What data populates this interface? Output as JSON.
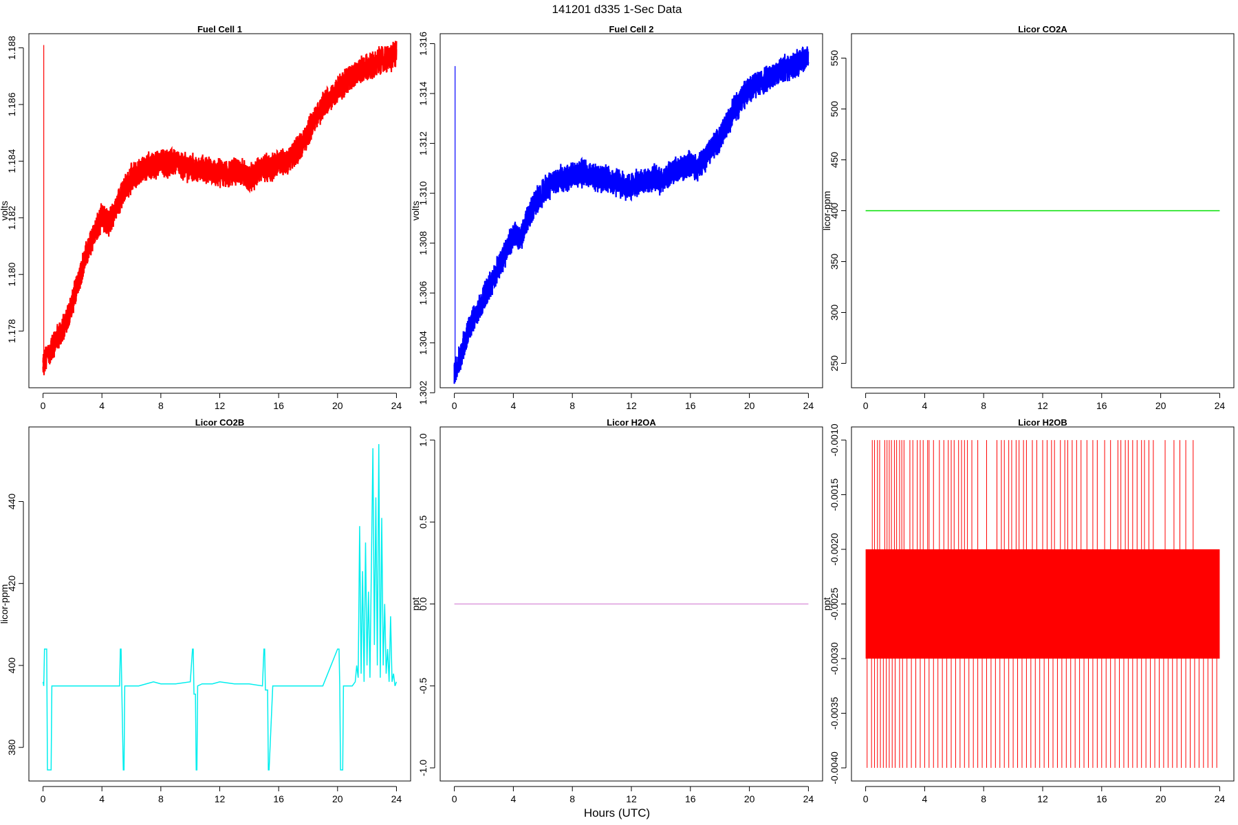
{
  "title": "141201   d335   1-Sec Data",
  "xlabel": "Hours (UTC)",
  "chart_data": [
    {
      "type": "line",
      "title": "Fuel Cell 1",
      "ylabel": "volts",
      "color": "#ff0000",
      "xlim": [
        -0.96,
        24.96
      ],
      "ylim": [
        1.176,
        1.1885
      ],
      "xticks": [
        0,
        4,
        8,
        12,
        16,
        20,
        24
      ],
      "yticks": [
        1.178,
        1.18,
        1.182,
        1.184,
        1.186,
        1.188
      ],
      "ytick_labels": [
        "1.178",
        "1.180",
        "1.182",
        "1.184",
        "1.186",
        "1.188"
      ],
      "band": 0.00045,
      "spike": {
        "x": 0.05,
        "y_low": 1.1765,
        "y_high": 1.1881
      },
      "series": [
        {
          "x": [
            0.0,
            0.2,
            0.5,
            0.8,
            1.0,
            1.5,
            2.0,
            2.5,
            3.0,
            3.5,
            4.0,
            4.5,
            5.0,
            5.5,
            6.0,
            6.5,
            7.0,
            7.5,
            8.0,
            8.5,
            9.0,
            9.5,
            10.0,
            10.5,
            11.0,
            11.5,
            12.0,
            12.5,
            13.0,
            13.5,
            14.0,
            14.5,
            15.0,
            15.5,
            16.0,
            16.5,
            17.0,
            17.5,
            18.0,
            18.5,
            19.0,
            19.5,
            20.0,
            20.5,
            21.0,
            21.5,
            22.0,
            22.5,
            23.0,
            23.5,
            24.0
          ],
          "y": [
            1.1768,
            1.177,
            1.1773,
            1.1776,
            1.1778,
            1.1782,
            1.179,
            1.18,
            1.1808,
            1.1815,
            1.182,
            1.1818,
            1.1825,
            1.183,
            1.1834,
            1.1836,
            1.1838,
            1.1838,
            1.184,
            1.1839,
            1.184,
            1.1838,
            1.1838,
            1.1837,
            1.1837,
            1.1836,
            1.1836,
            1.1835,
            1.1837,
            1.1836,
            1.1834,
            1.1836,
            1.1838,
            1.1837,
            1.184,
            1.1839,
            1.1842,
            1.1845,
            1.185,
            1.1855,
            1.186,
            1.1862,
            1.1865,
            1.1868,
            1.187,
            1.1872,
            1.1873,
            1.1874,
            1.1876,
            1.1876,
            1.1878
          ]
        }
      ]
    },
    {
      "type": "line",
      "title": "Fuel Cell 2",
      "ylabel": "volts",
      "color": "#0000ff",
      "xlim": [
        -0.96,
        24.96
      ],
      "ylim": [
        1.3022,
        1.3164
      ],
      "xticks": [
        0,
        4,
        8,
        12,
        16,
        20,
        24
      ],
      "yticks": [
        1.302,
        1.304,
        1.306,
        1.308,
        1.31,
        1.312,
        1.314,
        1.316
      ],
      "ytick_labels": [
        "1.302",
        "1.304",
        "1.306",
        "1.308",
        "1.310",
        "1.312",
        "1.314",
        "1.316"
      ],
      "band": 0.0005,
      "spike": {
        "x": 0.05,
        "y_low": 1.3026,
        "y_high": 1.3151
      },
      "series": [
        {
          "x": [
            0.0,
            0.2,
            0.5,
            0.8,
            1.0,
            1.5,
            2.0,
            2.5,
            3.0,
            3.5,
            4.0,
            4.5,
            5.0,
            5.5,
            6.0,
            6.5,
            7.0,
            7.5,
            8.0,
            8.5,
            9.0,
            9.5,
            10.0,
            10.5,
            11.0,
            11.5,
            12.0,
            12.5,
            13.0,
            13.5,
            14.0,
            14.5,
            15.0,
            15.5,
            16.0,
            16.5,
            17.0,
            17.5,
            18.0,
            18.5,
            19.0,
            19.5,
            20.0,
            20.5,
            21.0,
            21.5,
            22.0,
            22.5,
            23.0,
            23.5,
            24.0
          ],
          "y": [
            1.3028,
            1.3031,
            1.3036,
            1.3042,
            1.3046,
            1.3052,
            1.3058,
            1.3064,
            1.307,
            1.3077,
            1.3083,
            1.3082,
            1.309,
            1.3096,
            1.3101,
            1.3103,
            1.3105,
            1.3106,
            1.3108,
            1.3108,
            1.3108,
            1.3107,
            1.3106,
            1.3105,
            1.3104,
            1.3103,
            1.3103,
            1.3104,
            1.3105,
            1.3106,
            1.3105,
            1.3107,
            1.3109,
            1.311,
            1.3112,
            1.311,
            1.3114,
            1.3118,
            1.3122,
            1.3128,
            1.3134,
            1.3138,
            1.3142,
            1.3144,
            1.3145,
            1.3147,
            1.3149,
            1.315,
            1.3151,
            1.3153,
            1.3155
          ]
        }
      ]
    },
    {
      "type": "line",
      "title": "Licor CO2A",
      "ylabel": "licor-ppm",
      "color": "#00e000",
      "xlim": [
        -0.96,
        24.96
      ],
      "ylim": [
        226,
        574
      ],
      "xticks": [
        0,
        4,
        8,
        12,
        16,
        20,
        24
      ],
      "yticks": [
        250,
        300,
        350,
        400,
        450,
        500,
        550
      ],
      "ytick_labels": [
        "250",
        "300",
        "350",
        "400",
        "450",
        "500",
        "550"
      ],
      "series": [
        {
          "x": [
            0,
            24
          ],
          "y": [
            400,
            400
          ]
        }
      ]
    },
    {
      "type": "line",
      "title": "Licor CO2B",
      "ylabel": "licor-ppm",
      "color": "#00eeee",
      "xlim": [
        -0.96,
        24.96
      ],
      "ylim": [
        371.8,
        458.2
      ],
      "xticks": [
        0,
        4,
        8,
        12,
        16,
        20,
        24
      ],
      "yticks": [
        380,
        400,
        420,
        440
      ],
      "ytick_labels": [
        "380",
        "400",
        "420",
        "440"
      ],
      "series": [
        {
          "x": [
            0.0,
            0.05,
            0.1,
            0.25,
            0.3,
            0.35,
            0.55,
            0.6,
            0.65,
            1.0,
            2.0,
            3.0,
            4.0,
            5.0,
            5.2,
            5.25,
            5.3,
            5.45,
            5.5,
            5.55,
            5.9,
            6.5,
            7.0,
            7.5,
            8.0,
            9.0,
            10.0,
            10.15,
            10.2,
            10.25,
            10.35,
            10.4,
            10.45,
            10.5,
            10.8,
            11.5,
            12.0,
            13.0,
            14.0,
            14.9,
            15.0,
            15.05,
            15.1,
            15.25,
            15.3,
            15.35,
            15.6,
            16.0,
            17.0,
            18.0,
            19.0,
            20.0,
            20.1,
            20.15,
            20.2,
            20.35,
            20.4,
            20.45,
            20.7,
            21.0,
            21.2,
            21.3,
            21.4,
            21.5,
            21.6,
            21.7,
            21.8,
            21.9,
            22.0,
            22.1,
            22.2,
            22.3,
            22.4,
            22.5,
            22.6,
            22.7,
            22.8,
            22.9,
            23.0,
            23.1,
            23.2,
            23.3,
            23.4,
            23.5,
            23.6,
            23.7,
            23.8,
            23.9,
            24.0
          ],
          "y": [
            396,
            395,
            404,
            404,
            374.5,
            374.5,
            374.5,
            395,
            395,
            395,
            395,
            395,
            395,
            395,
            395,
            404,
            404,
            374.5,
            374.5,
            395,
            395,
            395,
            395.5,
            396,
            395.5,
            395.5,
            396,
            404,
            404,
            393,
            393,
            374.5,
            374.5,
            395,
            395.5,
            395.5,
            396,
            395.5,
            395.5,
            395,
            404,
            404,
            394,
            394,
            374.5,
            374.5,
            395,
            395,
            395,
            395,
            395,
            404,
            404,
            395,
            374.5,
            374.5,
            395,
            395,
            395,
            395,
            396,
            400,
            397,
            434,
            398,
            423,
            396,
            430,
            400,
            418,
            397,
            425,
            453,
            405,
            441,
            400,
            454,
            397,
            436,
            400,
            415,
            398,
            404,
            396,
            412,
            396,
            398,
            395,
            396
          ]
        }
      ]
    },
    {
      "type": "line",
      "title": "Licor H2OA",
      "ylabel": "ppt",
      "color": "#dd99dd",
      "xlim": [
        -0.96,
        24.96
      ],
      "ylim": [
        -1.08,
        1.08
      ],
      "xticks": [
        0,
        4,
        8,
        12,
        16,
        20,
        24
      ],
      "yticks": [
        -1.0,
        -0.5,
        0.0,
        0.5,
        1.0
      ],
      "ytick_labels": [
        "-1.0",
        "-0.5",
        "0.0",
        "0.5",
        "1.0"
      ],
      "series": [
        {
          "x": [
            0,
            24
          ],
          "y": [
            0,
            0
          ]
        }
      ]
    },
    {
      "type": "line",
      "title": "Licor H2OB",
      "ylabel": "ppt",
      "color": "#ff0000",
      "xlim": [
        -0.96,
        24.96
      ],
      "ylim": [
        -0.00412,
        -0.00088
      ],
      "xticks": [
        0,
        4,
        8,
        12,
        16,
        20,
        24
      ],
      "yticks": [
        -0.004,
        -0.0035,
        -0.003,
        -0.0025,
        -0.002,
        -0.0015,
        -0.001
      ],
      "ytick_labels": [
        "-0.0040",
        "-0.0035",
        "-0.0030",
        "-0.0025",
        "-0.0020",
        "-0.0015",
        "-0.0010"
      ],
      "band_range": [
        -0.003,
        -0.002
      ],
      "spikes_up": [
        0.45,
        0.6,
        0.8,
        0.95,
        1.3,
        1.45,
        1.6,
        1.75,
        1.95,
        2.1,
        2.3,
        2.45,
        2.6,
        3.0,
        3.2,
        3.5,
        3.7,
        3.9,
        4.2,
        4.3,
        4.6,
        5.0,
        5.3,
        5.6,
        5.8,
        6.0,
        6.3,
        6.5,
        6.7,
        6.9,
        7.2,
        7.6,
        8.2,
        8.9,
        9.2,
        9.4,
        9.7,
        9.9,
        10.2,
        10.4,
        10.7,
        10.9,
        11.3,
        11.6,
        12.0,
        12.3,
        12.6,
        12.8,
        13.2,
        13.5,
        13.7,
        14.0,
        14.3,
        14.6,
        15.0,
        15.4,
        15.7,
        16.2,
        16.6,
        17.1,
        17.3,
        17.6,
        17.8,
        18.1,
        18.4,
        18.7,
        18.9,
        19.2,
        19.5,
        20.3,
        20.9,
        21.3,
        21.7,
        22.2
      ],
      "spikes_down": [
        0.1,
        0.4,
        0.6,
        0.8,
        1.0,
        1.2,
        1.4,
        1.6,
        1.8,
        2.0,
        2.3,
        2.5,
        2.8,
        3.1,
        3.4,
        3.7,
        4.0,
        4.3,
        4.6,
        4.9,
        5.2,
        5.5,
        5.8,
        6.1,
        6.4,
        6.7,
        7.0,
        7.3,
        7.6,
        7.9,
        8.2,
        8.5,
        8.8,
        9.1,
        9.4,
        9.7,
        10.0,
        10.3,
        10.6,
        10.9,
        11.2,
        11.5,
        11.8,
        12.1,
        12.4,
        12.7,
        13.0,
        13.3,
        13.6,
        13.9,
        14.2,
        14.5,
        14.8,
        15.1,
        15.4,
        15.7,
        16.0,
        16.3,
        16.6,
        16.9,
        17.2,
        17.5,
        17.8,
        18.1,
        18.4,
        18.7,
        19.0,
        19.3,
        19.6,
        19.9,
        20.2,
        20.5,
        20.8,
        21.1,
        21.4,
        21.7,
        22.0,
        22.3,
        22.6,
        22.9,
        23.2,
        23.5,
        23.8
      ]
    }
  ]
}
